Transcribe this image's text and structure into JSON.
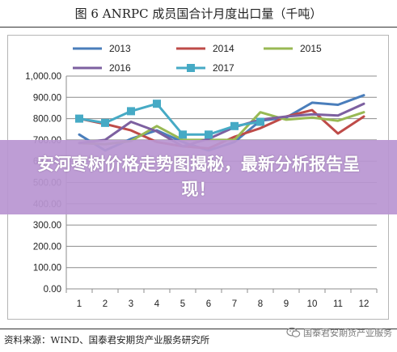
{
  "page": {
    "title": "图 6 ANRPC 成员国合计月度出口量（千吨）",
    "banner": "安河枣树价格走势图揭秘，最新分析报告呈现！",
    "source": "资料来源：WIND、国泰君安期货产业服务研究所",
    "watermark": "国泰君安期货产业服务"
  },
  "colors": {
    "2013": "#4a7ebb",
    "2014": "#be4b48",
    "2015": "#98b954",
    "2016": "#7d60a0",
    "2017": "#46aac5"
  },
  "chart_data": {
    "type": "line",
    "title": "图 6 ANRPC 成员国合计月度出口量（千吨）",
    "xlabel": "",
    "ylabel": "",
    "categories": [
      "1",
      "2",
      "3",
      "4",
      "5",
      "6",
      "7",
      "8",
      "9",
      "10",
      "11",
      "12"
    ],
    "ylim": [
      0,
      1000
    ],
    "ytick_step": 100,
    "ytick_labels": [
      "0.00",
      "100.00",
      "200.00",
      "300.00",
      "400.00",
      "500.00",
      "600.00",
      "700.00",
      "800.00",
      "900.00",
      "1,000.00"
    ],
    "grid": true,
    "legend_position": "top",
    "series": [
      {
        "name": "2013",
        "marker": "none",
        "values": [
          725,
          650,
          705,
          745,
          690,
          650,
          690,
          790,
          805,
          875,
          865,
          910
        ]
      },
      {
        "name": "2014",
        "marker": "none",
        "values": [
          800,
          775,
          745,
          690,
          670,
          660,
          715,
          755,
          810,
          840,
          730,
          810
        ]
      },
      {
        "name": "2015",
        "marker": "none",
        "values": [
          685,
          680,
          695,
          765,
          700,
          700,
          700,
          830,
          795,
          805,
          790,
          830
        ]
      },
      {
        "name": "2016",
        "marker": "none",
        "values": [
          685,
          700,
          785,
          740,
          670,
          705,
          760,
          795,
          810,
          820,
          815,
          870
        ]
      },
      {
        "name": "2017",
        "marker": "square",
        "values": [
          800,
          780,
          835,
          870,
          725,
          725,
          765,
          785,
          null,
          null,
          null,
          null
        ]
      }
    ]
  }
}
